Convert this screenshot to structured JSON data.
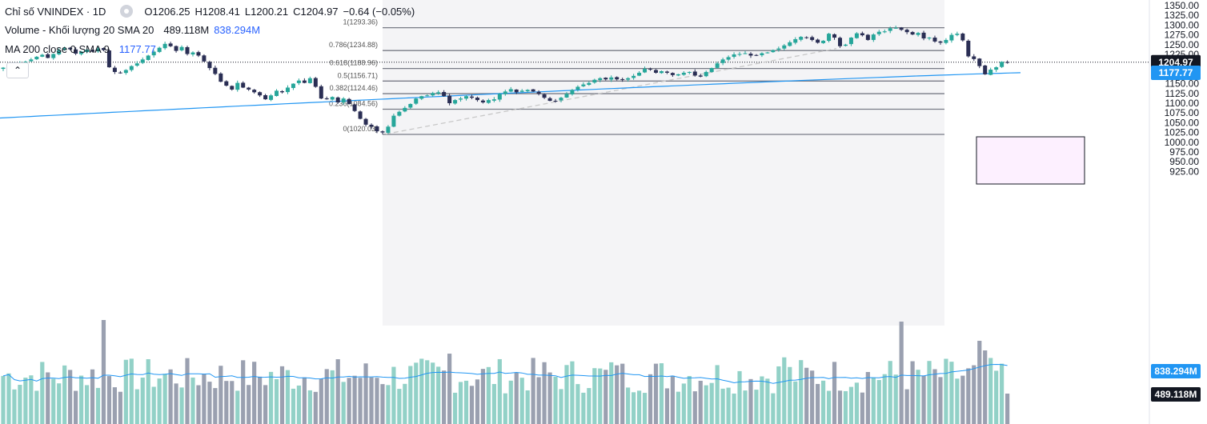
{
  "legend": {
    "title": "Chỉ số VNINDEX · 1D",
    "ohlc": {
      "o": "O1206.25",
      "h": "H1208.41",
      "l": "L1200.21",
      "c": "C1204.97"
    },
    "change": "−0.64 (−0.05%)",
    "volume_label": "Volume - Khối lượng 20 SMA 20",
    "volume_value": "489.118M",
    "volume_sma_value": "838.294M",
    "ma_label": "MA 200 close 0 SMA 9",
    "ma_value": "1177.77",
    "collapse_icon": "chevron-up-icon"
  },
  "colors": {
    "up": "#26a69a",
    "down": "#2a2e54",
    "ma": "#2196f3",
    "vol_up": "#92d1c7",
    "vol_down": "#9aa0b0",
    "fib": "#787b86",
    "badge_price": "#131722",
    "badge_ma": "#2196f3"
  },
  "chart_data": {
    "type": "candlestick",
    "y_axis": {
      "min": 925,
      "max": 1350,
      "ticks": [
        1350,
        1325,
        1300,
        1275,
        1250,
        1225,
        1200,
        1175,
        1150,
        1125,
        1100,
        1075,
        1050,
        1025,
        1000,
        975,
        950,
        925
      ],
      "tick_labels": [
        "1350.00",
        "1325.00",
        "1300.00",
        "1275.00",
        "1250.00",
        "1225.00",
        "1200.00",
        "1175.00",
        "1150.00",
        "1125.00",
        "1100.00",
        "1075.00",
        "1050.00",
        "1025.00",
        "1000.00",
        "975.00",
        "950.00",
        "925.00"
      ]
    },
    "price_badge": {
      "value": 1204.97,
      "label": "1204.97"
    },
    "ma_badge": {
      "value": 1177.77,
      "label": "1177.77"
    },
    "vol_sma_badge": {
      "label": "838.294M"
    },
    "vol_badge": {
      "label": "489.118M"
    },
    "fib_levels": [
      {
        "ratio": 1,
        "value": 1293.36,
        "label": "1(1293.36)"
      },
      {
        "ratio": 0.786,
        "value": 1234.88,
        "label": "0.786(1234.88)"
      },
      {
        "ratio": 0.618,
        "value": 1188.96,
        "label": "0.618(1188.96)"
      },
      {
        "ratio": 0.5,
        "value": 1156.71,
        "label": "0.5(1156.71)"
      },
      {
        "ratio": 0.382,
        "value": 1124.46,
        "label": "0.382(1124.46)"
      },
      {
        "ratio": 0.236,
        "value": 1084.56,
        "label": "0.236(1084.56)"
      },
      {
        "ratio": 0,
        "value": 1020.03,
        "label": "0(1020.03)"
      }
    ],
    "closes": [
      1191,
      1196,
      1200,
      1202,
      1206,
      1212,
      1219,
      1224,
      1216,
      1226,
      1236,
      1241,
      1238,
      1227,
      1232,
      1237,
      1232,
      1240,
      1236,
      1192,
      1180,
      1178,
      1185,
      1195,
      1202,
      1212,
      1222,
      1232,
      1242,
      1252,
      1246,
      1234,
      1244,
      1226,
      1230,
      1222,
      1207,
      1190,
      1175,
      1155,
      1145,
      1135,
      1152,
      1140,
      1135,
      1128,
      1120,
      1110,
      1120,
      1132,
      1128,
      1140,
      1150,
      1158,
      1152,
      1164,
      1142,
      1112,
      1110,
      1116,
      1102,
      1112,
      1098,
      1080,
      1060,
      1045,
      1040,
      1028,
      1025,
      1040,
      1068,
      1078,
      1088,
      1098,
      1112,
      1118,
      1120,
      1126,
      1128,
      1118,
      1100,
      1108,
      1112,
      1118,
      1114,
      1108,
      1102,
      1108,
      1110,
      1124,
      1130,
      1136,
      1128,
      1132,
      1134,
      1130,
      1124,
      1114,
      1106,
      1106,
      1114,
      1124,
      1134,
      1142,
      1148,
      1152,
      1160,
      1164,
      1161,
      1166,
      1161,
      1160,
      1164,
      1170,
      1178,
      1188,
      1186,
      1178,
      1182,
      1178,
      1172,
      1174,
      1178,
      1180,
      1171,
      1168,
      1180,
      1190,
      1202,
      1212,
      1218,
      1225,
      1226,
      1228,
      1222,
      1222,
      1228,
      1230,
      1236,
      1240,
      1248,
      1256,
      1264,
      1270,
      1268,
      1262,
      1255,
      1260,
      1278,
      1268,
      1246,
      1250,
      1268,
      1279,
      1274,
      1262,
      1276,
      1283,
      1284,
      1292,
      1293,
      1288,
      1282,
      1276,
      1280,
      1266,
      1268,
      1258,
      1255,
      1262,
      1275,
      1278,
      1261,
      1220,
      1213,
      1195,
      1174,
      1186,
      1192,
      1206,
      1205
    ],
    "ma200": {
      "start": 1062,
      "end": 1178
    },
    "volume_bars": 183
  }
}
